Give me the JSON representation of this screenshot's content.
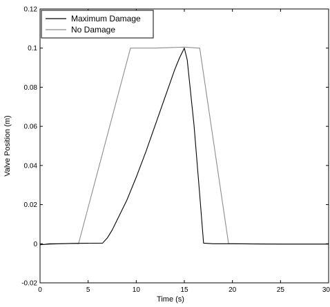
{
  "chart_data": {
    "type": "line",
    "title": "",
    "xlabel": "Time (s)",
    "ylabel": "Valve Position (m)",
    "xlim": [
      0,
      30
    ],
    "ylim": [
      -0.02,
      0.12
    ],
    "xticks": [
      0,
      5,
      10,
      15,
      20,
      25,
      30
    ],
    "xtick_labels": [
      "0",
      "5",
      "10",
      "15",
      "20",
      "25",
      "30"
    ],
    "yticks": [
      -0.02,
      0,
      0.02,
      0.04,
      0.06,
      0.08,
      0.1,
      0.12
    ],
    "ytick_labels": [
      "-0.02",
      "0",
      "0.02",
      "0.04",
      "0.06",
      "0.08",
      "0.1",
      "0.12"
    ],
    "grid": false,
    "legend_position": "top-left",
    "series": [
      {
        "name": "Maximum Damage",
        "color": "#000000",
        "x": [
          0,
          0.5,
          1,
          2,
          4,
          6.5,
          7,
          7.5,
          8,
          9,
          10,
          11,
          12,
          13,
          14,
          14.5,
          15,
          15.3,
          16,
          16.6,
          17,
          18,
          20,
          25,
          30
        ],
        "y": [
          -0.0005,
          -0.0003,
          0.0,
          0.0,
          0.0002,
          0.0003,
          0.003,
          0.007,
          0.012,
          0.022,
          0.034,
          0.047,
          0.061,
          0.075,
          0.089,
          0.095,
          0.1,
          0.094,
          0.061,
          0.025,
          0.0003,
          0.0,
          0.0,
          -0.0002,
          -0.0002
        ]
      },
      {
        "name": "No Damage",
        "color": "#8c8c8c",
        "x": [
          0,
          1,
          2,
          3.6,
          4,
          9.4,
          9.6,
          12,
          15,
          16.5,
          16.6,
          19.6,
          20,
          25,
          30
        ],
        "y": [
          -0.0005,
          -0.0003,
          0.0,
          0.0002,
          0.0,
          0.1,
          0.1,
          0.1,
          0.1005,
          0.1,
          0.1,
          0.0,
          0.0,
          -0.0002,
          -0.0002
        ]
      }
    ]
  }
}
